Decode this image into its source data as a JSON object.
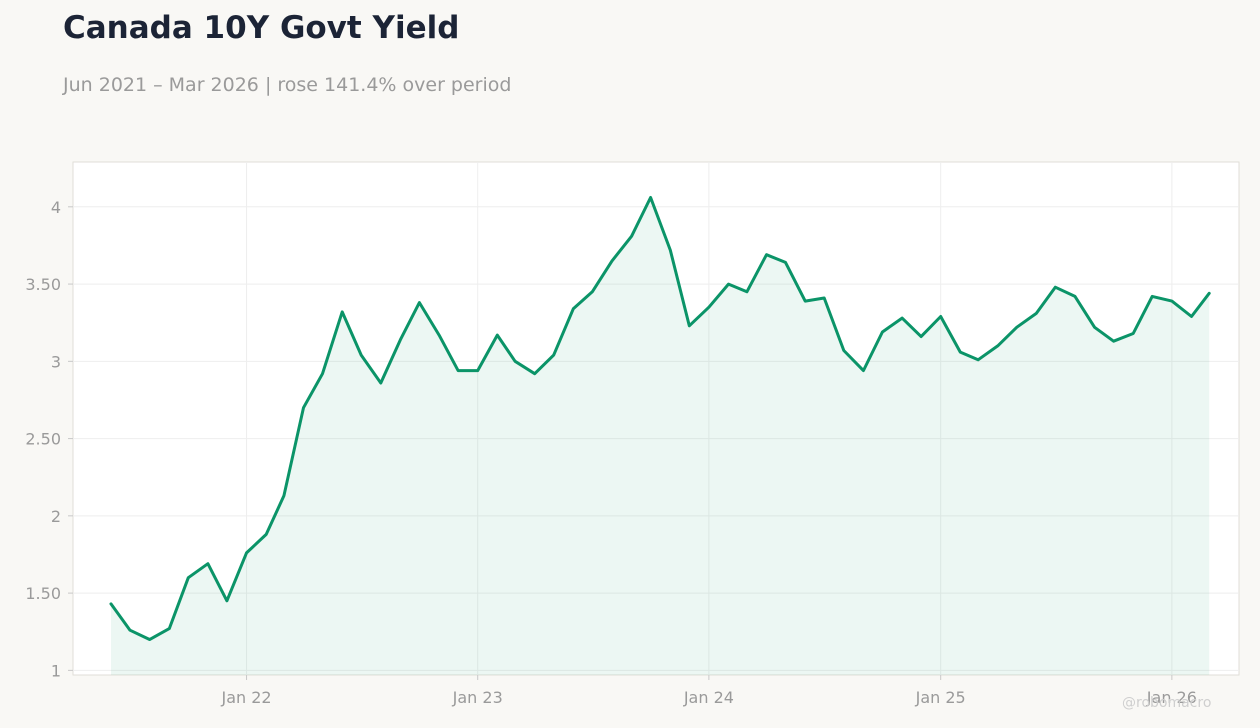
{
  "title": "Canada 10Y Govt Yield",
  "subtitle": "Jun 2021 – Mar 2026 | rose 141.4% over period",
  "watermark": "@robomacro",
  "colors": {
    "line": "#0b9468",
    "fill": "#0b9468",
    "background": "#f9f8f5",
    "plot_background": "#ffffff",
    "title": "#1c2436",
    "muted_text": "#9a9a9a"
  },
  "chart_data": {
    "type": "area",
    "title": "Canada 10Y Govt Yield",
    "subtitle": "Jun 2021 – Mar 2026 | rose 141.4% over period",
    "xlabel": "",
    "ylabel": "",
    "x_ticks": [
      "Jan 22",
      "Jan 23",
      "Jan 24",
      "Jan 25",
      "Jan 26"
    ],
    "y_ticks": [
      "1",
      "1.50",
      "2",
      "2.50",
      "3",
      "3.50",
      "4"
    ],
    "ylim": [
      0.97,
      4.29
    ],
    "xlim": [
      "2021-04-02",
      "2026-04-17"
    ],
    "grid": true,
    "legend": "none",
    "series": [
      {
        "x": [
          "2021-06-01",
          "2021-07-01",
          "2021-08-01",
          "2021-09-01",
          "2021-10-01",
          "2021-11-01",
          "2021-12-01",
          "2022-01-01",
          "2022-02-01",
          "2022-03-01",
          "2022-04-01",
          "2022-05-01",
          "2022-06-01",
          "2022-07-01",
          "2022-08-01",
          "2022-09-01",
          "2022-10-01",
          "2022-11-01",
          "2022-12-01",
          "2023-01-01",
          "2023-02-01",
          "2023-03-01",
          "2023-04-01",
          "2023-05-01",
          "2023-06-01",
          "2023-07-01",
          "2023-08-01",
          "2023-09-01",
          "2023-10-01",
          "2023-11-01",
          "2023-12-01",
          "2024-01-01",
          "2024-02-01",
          "2024-03-01",
          "2024-04-01",
          "2024-05-01",
          "2024-06-01",
          "2024-07-01",
          "2024-08-01",
          "2024-09-01",
          "2024-10-01",
          "2024-11-01",
          "2024-12-01",
          "2025-01-01",
          "2025-02-01",
          "2025-03-01",
          "2025-04-01",
          "2025-05-01",
          "2025-06-01",
          "2025-07-01",
          "2025-08-01",
          "2025-09-01",
          "2025-10-01",
          "2025-11-01",
          "2025-12-01",
          "2026-01-01",
          "2026-02-01",
          "2026-03-01"
        ],
        "values": [
          1.43,
          1.26,
          1.2,
          1.27,
          1.6,
          1.69,
          1.45,
          1.76,
          1.88,
          2.13,
          2.7,
          2.92,
          3.32,
          3.04,
          2.86,
          3.14,
          3.38,
          3.17,
          2.94,
          2.94,
          3.17,
          3.0,
          2.92,
          3.04,
          3.34,
          3.45,
          3.65,
          3.81,
          4.06,
          3.72,
          3.23,
          3.35,
          3.5,
          3.45,
          3.69,
          3.64,
          3.39,
          3.41,
          3.07,
          2.94,
          3.19,
          3.28,
          3.16,
          3.29,
          3.06,
          3.01,
          3.1,
          3.22,
          3.31,
          3.48,
          3.42,
          3.22,
          3.13,
          3.18,
          3.42,
          3.39,
          3.29,
          3.44
        ]
      }
    ]
  }
}
